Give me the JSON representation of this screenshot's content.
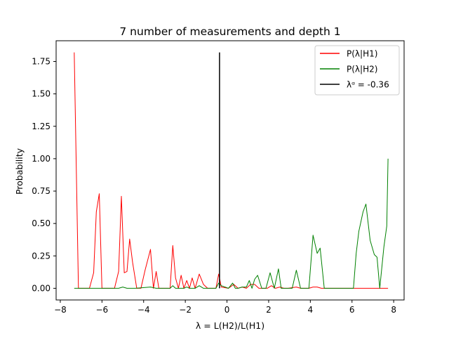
{
  "chart_data": {
    "type": "line",
    "title": "7 number of measurements and depth 1",
    "xlabel": "λ = L(H2)/L(H1)",
    "ylabel": "Probability",
    "xlim": [
      -8.2,
      8.5
    ],
    "ylim": [
      -0.09,
      1.91
    ],
    "xticks": [
      -8,
      -6,
      -4,
      -2,
      0,
      2,
      4,
      6,
      8
    ],
    "xtick_labels": [
      "−8",
      "−6",
      "−4",
      "−2",
      "0",
      "2",
      "4",
      "6",
      "8"
    ],
    "yticks": [
      0.0,
      0.25,
      0.5,
      0.75,
      1.0,
      1.25,
      1.5,
      1.75
    ],
    "ytick_labels": [
      "0.00",
      "0.25",
      "0.50",
      "0.75",
      "1.00",
      "1.25",
      "1.50",
      "1.75"
    ],
    "grid": false,
    "legend_position": "top-right",
    "series": [
      {
        "name": "P(λ|H1)",
        "color": "#ff0000",
        "x": [
          -7.33,
          -7.13,
          -6.6,
          -6.4,
          -6.27,
          -6.13,
          -6.0,
          -5.4,
          -5.2,
          -5.07,
          -4.93,
          -4.8,
          -4.67,
          -4.53,
          -4.33,
          -4.13,
          -3.93,
          -3.67,
          -3.53,
          -3.4,
          -3.27,
          -2.73,
          -2.6,
          -2.47,
          -2.33,
          -2.2,
          -2.07,
          -1.93,
          -1.8,
          -1.67,
          -1.53,
          -1.33,
          -1.13,
          -0.93,
          -0.73,
          -0.53,
          -0.4,
          -0.27,
          0.07,
          0.33,
          0.53,
          0.73,
          0.93,
          1.13,
          1.33,
          1.53,
          1.73,
          1.93,
          2.13,
          2.33,
          2.53,
          2.73,
          2.93,
          3.33,
          3.53,
          3.73,
          3.93,
          4.13,
          4.33,
          4.53,
          4.73,
          6.67,
          7.33,
          7.73
        ],
        "y": [
          1.82,
          0.0,
          0.0,
          0.12,
          0.59,
          0.73,
          0.0,
          0.0,
          0.13,
          0.71,
          0.12,
          0.13,
          0.38,
          0.2,
          0.0,
          0.0,
          0.14,
          0.3,
          0.0,
          0.13,
          0.0,
          0.0,
          0.33,
          0.08,
          0.0,
          0.1,
          0.0,
          0.06,
          0.0,
          0.08,
          0.0,
          0.11,
          0.03,
          0.0,
          0.0,
          0.0,
          0.11,
          0.01,
          0.0,
          0.03,
          0.0,
          0.01,
          0.0,
          0.03,
          0.03,
          0.0,
          0.0,
          0.0,
          0.02,
          0.0,
          0.01,
          0.0,
          0.0,
          0.01,
          0.0,
          0.0,
          0.0,
          0.01,
          0.01,
          0.0,
          0.0,
          0.0,
          0.0,
          0.0
        ]
      },
      {
        "name": "P(λ|H2)",
        "color": "#008000",
        "x": [
          -7.33,
          -6.0,
          -5.2,
          -5.0,
          -4.8,
          -4.4,
          -3.67,
          -3.4,
          -2.73,
          -2.6,
          -2.47,
          -2.33,
          -2.07,
          -1.93,
          -1.8,
          -1.67,
          -1.53,
          -1.33,
          -1.13,
          -0.93,
          -0.73,
          -0.53,
          -0.4,
          -0.27,
          0.07,
          0.27,
          0.4,
          0.53,
          0.73,
          0.93,
          1.07,
          1.2,
          1.33,
          1.47,
          1.67,
          1.87,
          2.07,
          2.27,
          2.47,
          2.6,
          2.73,
          2.93,
          3.13,
          3.33,
          3.53,
          3.73,
          3.93,
          4.13,
          4.33,
          4.47,
          4.67,
          4.93,
          5.33,
          5.67,
          6.07,
          6.2,
          6.33,
          6.53,
          6.67,
          6.87,
          7.07,
          7.2,
          7.33,
          7.53,
          7.67,
          7.73
        ],
        "y": [
          0.0,
          0.0,
          0.0,
          0.01,
          0.0,
          0.0,
          0.01,
          0.0,
          0.0,
          0.02,
          0.0,
          0.0,
          0.0,
          0.01,
          0.0,
          0.0,
          0.0,
          0.02,
          0.0,
          0.0,
          0.0,
          0.0,
          0.04,
          0.02,
          0.0,
          0.04,
          0.0,
          0.0,
          0.01,
          0.01,
          0.06,
          0.0,
          0.07,
          0.1,
          0.0,
          0.0,
          0.12,
          0.0,
          0.15,
          0.0,
          0.0,
          0.0,
          0.0,
          0.14,
          0.0,
          0.0,
          0.0,
          0.41,
          0.27,
          0.31,
          0.0,
          0.0,
          0.0,
          0.0,
          0.0,
          0.27,
          0.44,
          0.59,
          0.65,
          0.37,
          0.26,
          0.24,
          0.0,
          0.32,
          0.48,
          1.0
        ]
      },
      {
        "name": "λᵅ = -0.36",
        "color": "#000000",
        "x": [
          -0.36,
          -0.36
        ],
        "y": [
          0.0,
          1.82
        ]
      }
    ]
  }
}
